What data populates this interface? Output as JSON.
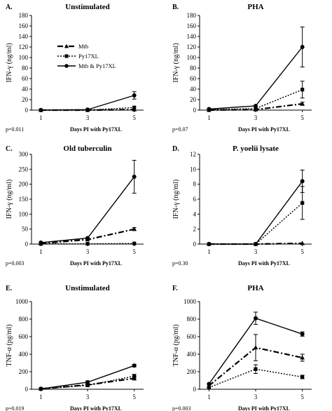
{
  "series_styles": {
    "mtb": {
      "name": "Mtb",
      "marker": "triangle",
      "dash": "8,3,2,3",
      "width": 2.2
    },
    "py": {
      "name": "Py17XL",
      "marker": "square",
      "dash": "2,2",
      "width": 1.4
    },
    "both": {
      "name": "Mtb & Py17XL",
      "marker": "circle",
      "dash": "",
      "width": 1.4
    }
  },
  "chart_data": [
    {
      "type": "line",
      "panel": "A.",
      "title": "Unstimulated",
      "xlabel": "Days PI with Py17XL",
      "ylabel": "IFN-γ (ng/ml)",
      "x": [
        1,
        3,
        5
      ],
      "ylim": [
        0,
        180
      ],
      "yticks": [
        0,
        20,
        40,
        60,
        80,
        100,
        120,
        140,
        160,
        180
      ],
      "pvalue": "p=0.011",
      "legend": "top-left",
      "series": [
        {
          "key": "mtb",
          "name": "Mtb",
          "values": [
            0,
            0,
            1
          ],
          "errors": [
            0,
            0,
            0
          ]
        },
        {
          "key": "py",
          "name": "Py17XL",
          "values": [
            0,
            0,
            5
          ],
          "errors": [
            0,
            0,
            0
          ]
        },
        {
          "key": "both",
          "name": "Mtb & Py17XL",
          "values": [
            0,
            1,
            28
          ],
          "errors": [
            0,
            0,
            7
          ]
        }
      ]
    },
    {
      "type": "line",
      "panel": "B.",
      "title": "PHA",
      "xlabel": "Days PI with Py17XL",
      "ylabel": "IFN-γ (ng/ml)",
      "x": [
        1,
        3,
        5
      ],
      "ylim": [
        0,
        180
      ],
      "yticks": [
        0,
        20,
        40,
        60,
        80,
        100,
        120,
        140,
        160,
        180
      ],
      "pvalue": "p=0.07",
      "series": [
        {
          "key": "mtb",
          "name": "Mtb",
          "values": [
            0,
            1,
            12
          ],
          "errors": [
            0,
            0,
            3
          ]
        },
        {
          "key": "py",
          "name": "Py17XL",
          "values": [
            1,
            3,
            39
          ],
          "errors": [
            0,
            0,
            16
          ]
        },
        {
          "key": "both",
          "name": "Mtb & Py17XL",
          "values": [
            2,
            8,
            120
          ],
          "errors": [
            0,
            0,
            38
          ]
        }
      ]
    },
    {
      "type": "line",
      "panel": "C.",
      "title": "Old tuberculin",
      "xlabel": "Days PI with Py17XL",
      "ylabel": "IFN-γ (ng/ml)",
      "x": [
        1,
        3,
        5
      ],
      "ylim": [
        0,
        300
      ],
      "yticks": [
        0,
        50,
        100,
        150,
        200,
        250,
        300
      ],
      "pvalue": "p=0.003",
      "series": [
        {
          "key": "mtb",
          "name": "Mtb",
          "values": [
            2,
            15,
            50
          ],
          "errors": [
            0,
            0,
            5
          ]
        },
        {
          "key": "py",
          "name": "Py17XL",
          "values": [
            1,
            1,
            2
          ],
          "errors": [
            0,
            0,
            0
          ]
        },
        {
          "key": "both",
          "name": "Mtb & Py17XL",
          "values": [
            5,
            20,
            225
          ],
          "errors": [
            0,
            0,
            55
          ]
        }
      ]
    },
    {
      "type": "line",
      "panel": "D.",
      "title": "P. yoelii lysate",
      "xlabel": "Days PI with Py17XL",
      "ylabel": "IFN-γ (ng/ml)",
      "x": [
        1,
        3,
        5
      ],
      "ylim": [
        0,
        12
      ],
      "yticks": [
        0,
        2,
        4,
        6,
        8,
        10,
        12
      ],
      "pvalue": "p=0.30",
      "series": [
        {
          "key": "mtb",
          "name": "Mtb",
          "values": [
            0,
            0,
            0.1
          ],
          "errors": [
            0,
            0,
            0
          ]
        },
        {
          "key": "py",
          "name": "Py17XL",
          "values": [
            0,
            0,
            5.5
          ],
          "errors": [
            0,
            0,
            2.2
          ]
        },
        {
          "key": "both",
          "name": "Mtb & Py17XL",
          "values": [
            0,
            0,
            8.4
          ],
          "errors": [
            0,
            0,
            1.5
          ]
        }
      ]
    },
    {
      "type": "line",
      "panel": "E.",
      "title": "Unstimulated",
      "xlabel": "Days PI with Py17XL",
      "ylabel": "TNF-α (pg/ml)",
      "x": [
        1,
        3,
        5
      ],
      "ylim": [
        0,
        1000
      ],
      "yticks": [
        0,
        200,
        400,
        600,
        800,
        1000
      ],
      "pvalue": "p=0.019",
      "series": [
        {
          "key": "mtb",
          "name": "Mtb",
          "values": [
            5,
            50,
            125
          ],
          "errors": [
            0,
            10,
            20
          ]
        },
        {
          "key": "py",
          "name": "Py17XL",
          "values": [
            5,
            45,
            150
          ],
          "errors": [
            0,
            10,
            20
          ]
        },
        {
          "key": "both",
          "name": "Mtb & Py17XL",
          "values": [
            5,
            80,
            270
          ],
          "errors": [
            0,
            15,
            15
          ]
        }
      ]
    },
    {
      "type": "line",
      "panel": "F.",
      "title": "PHA",
      "xlabel": "Days PI with Py17XL",
      "ylabel": "TNF-α (pg/ml)",
      "x": [
        1,
        3,
        5
      ],
      "ylim": [
        0,
        1000
      ],
      "yticks": [
        0,
        200,
        400,
        600,
        800,
        1000
      ],
      "pvalue": "p=0.003",
      "series": [
        {
          "key": "mtb",
          "name": "Mtb",
          "values": [
            40,
            475,
            360
          ],
          "errors": [
            0,
            150,
            40
          ]
        },
        {
          "key": "py",
          "name": "Py17XL",
          "values": [
            20,
            230,
            140
          ],
          "errors": [
            0,
            50,
            20
          ]
        },
        {
          "key": "both",
          "name": "Mtb & Py17XL",
          "values": [
            60,
            810,
            630
          ],
          "errors": [
            0,
            70,
            25
          ]
        }
      ]
    }
  ]
}
